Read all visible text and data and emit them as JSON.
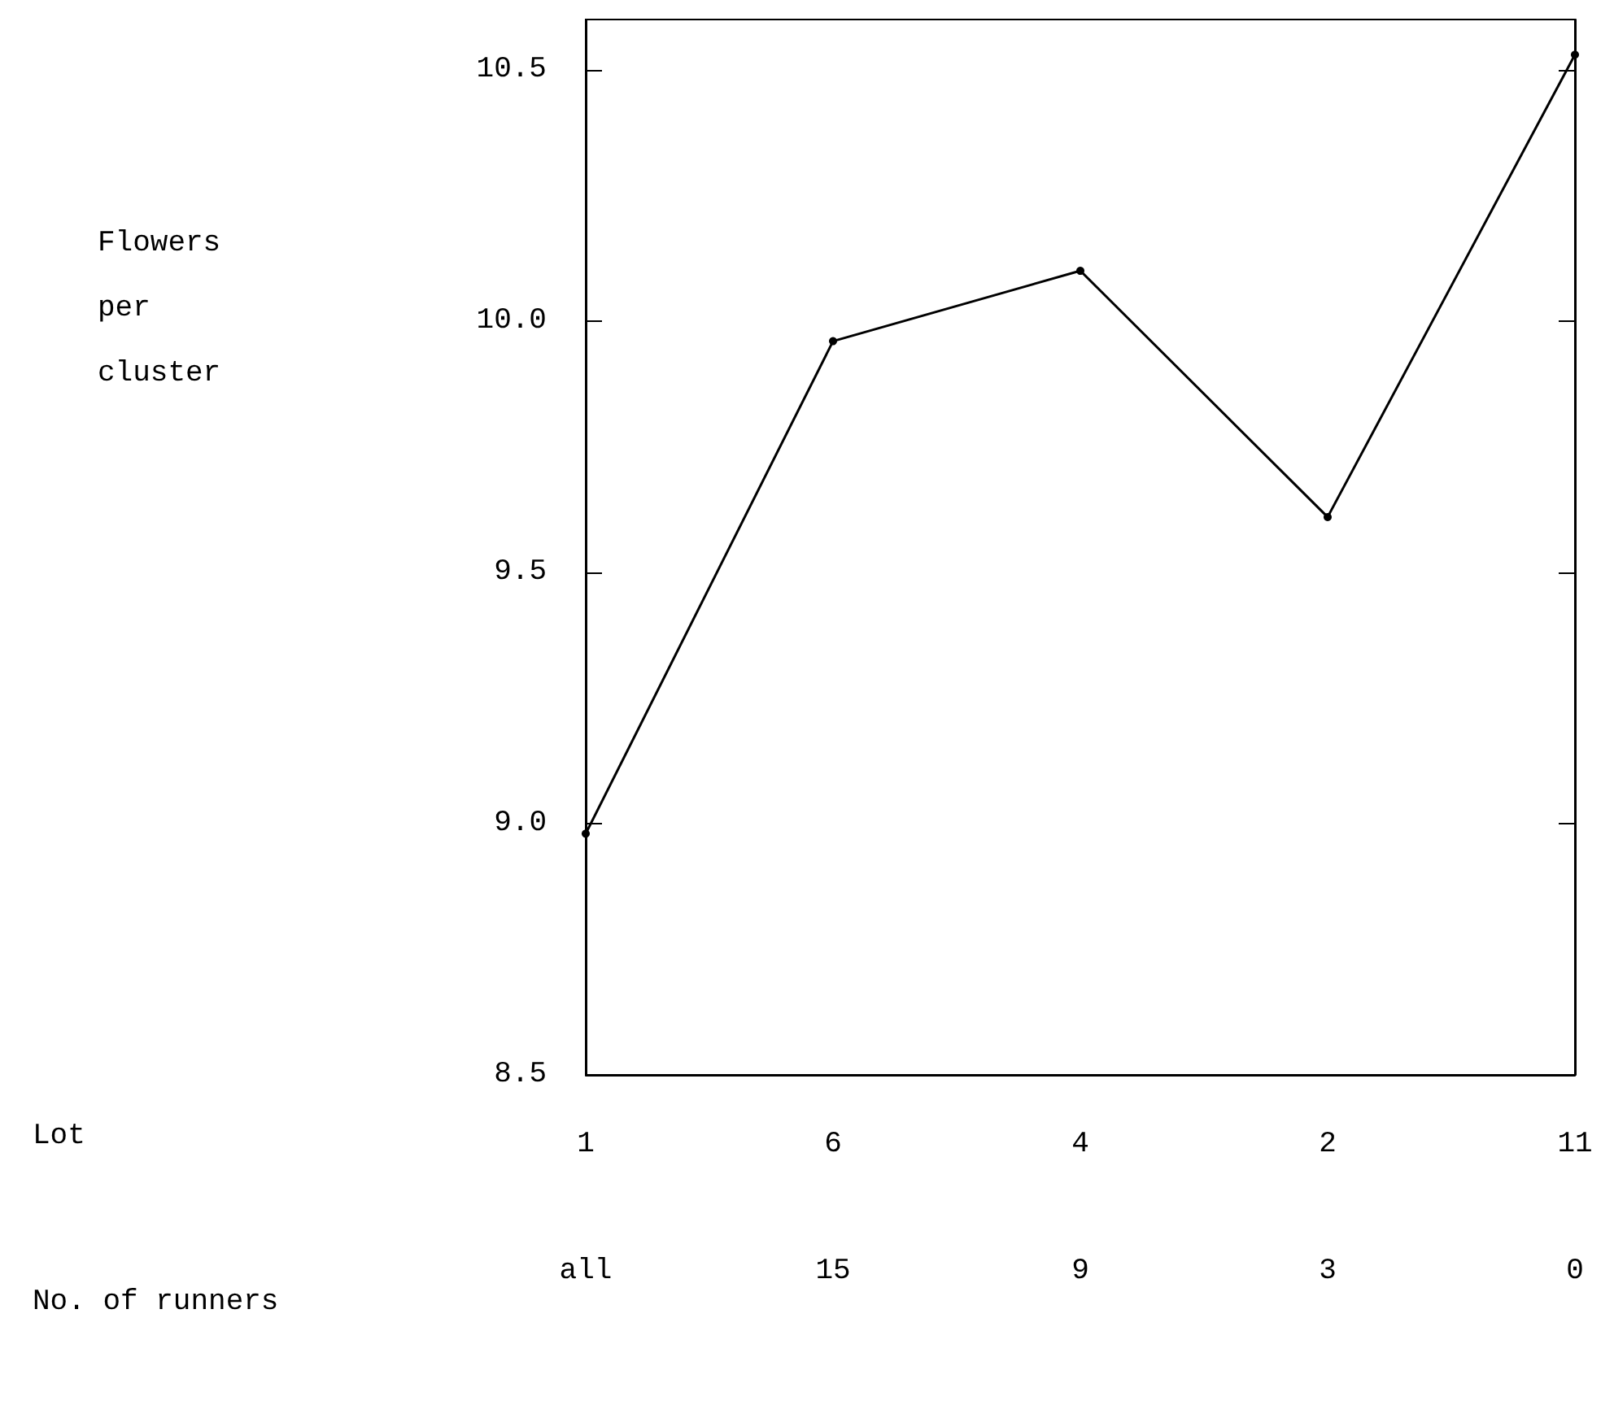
{
  "chart_data": {
    "type": "line",
    "categories": [
      "1",
      "6",
      "4",
      "2",
      "11"
    ],
    "values": [
      8.98,
      9.96,
      10.1,
      9.61,
      10.53
    ],
    "color": "#000000",
    "marker": "circle",
    "line_style": "solid",
    "ylim": [
      8.5,
      10.6
    ],
    "yticks": [
      8.5,
      {
        "value": 9,
        "label": "9.0"
      },
      9.5,
      {
        "value": 10,
        "label": "10.0"
      },
      10.5
    ],
    "grid": false,
    "annotations": [
      "Flowers\nper\ncluster",
      "Lot",
      "No. of runners",
      "all",
      "15",
      "9",
      "3",
      "0"
    ]
  }
}
